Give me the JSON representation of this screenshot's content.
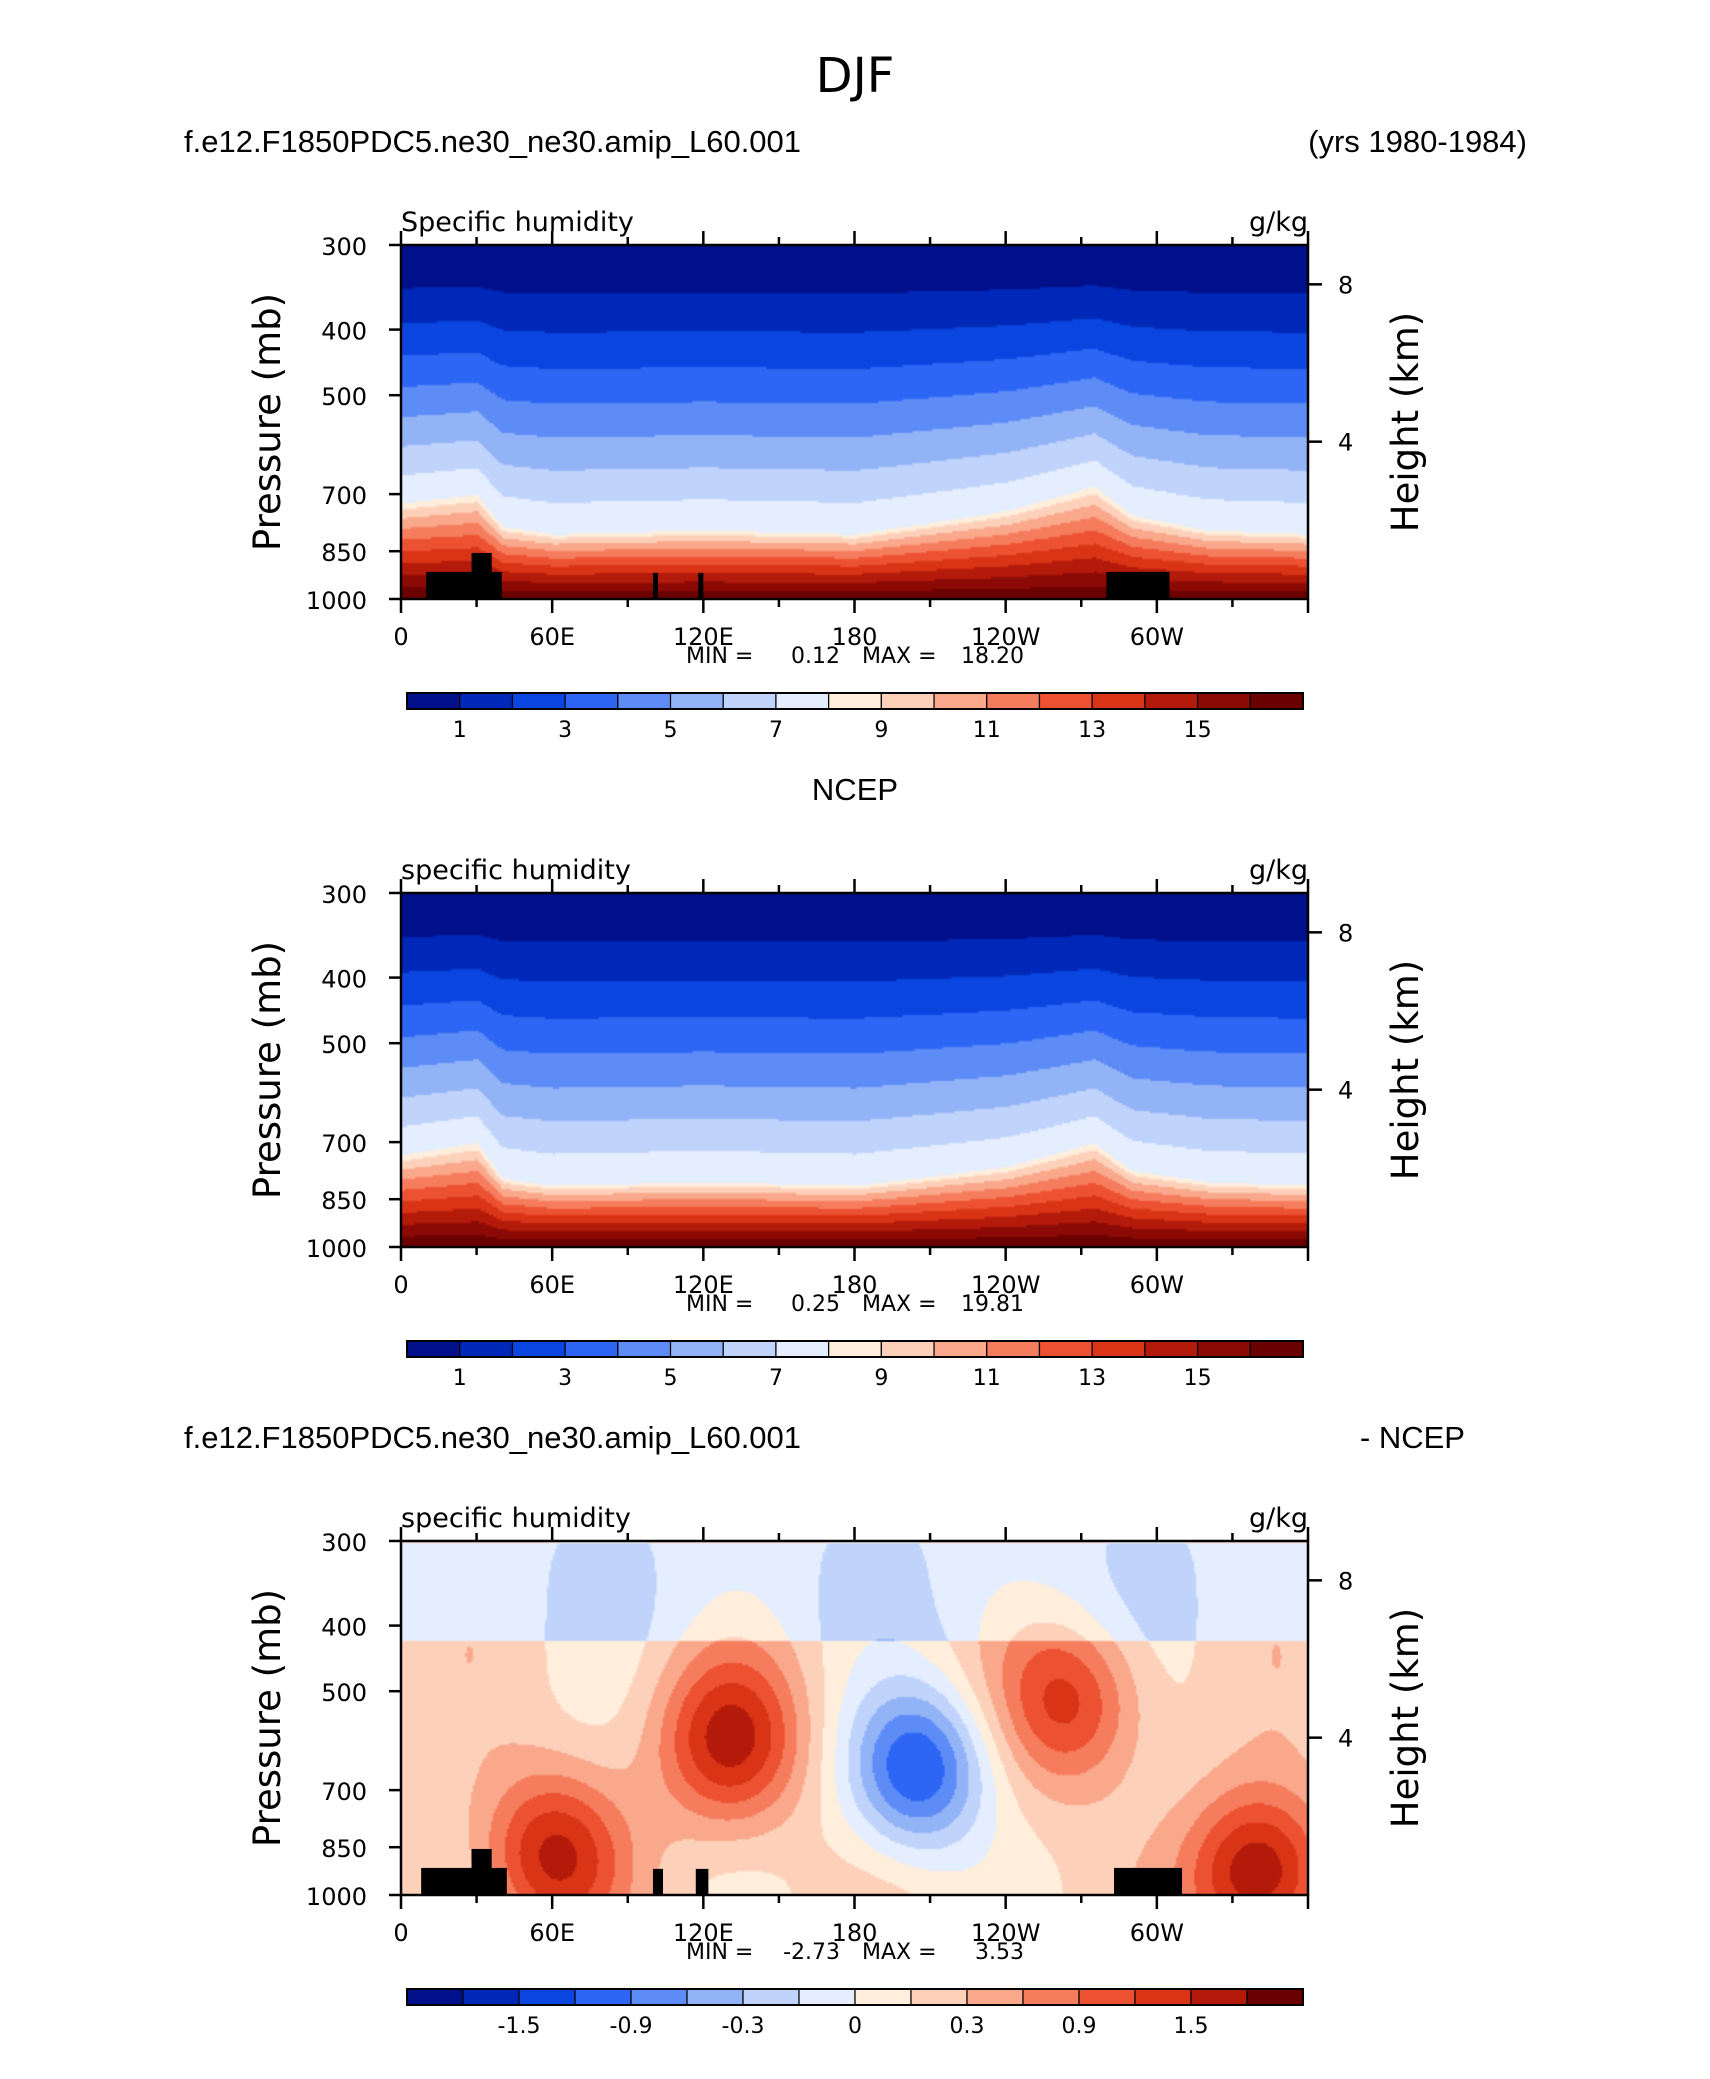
{
  "page_title": "DJF",
  "colors": {
    "seq": [
      "#00108a",
      "#0028b8",
      "#0a45e0",
      "#2d66f5",
      "#5e8cf6",
      "#93b3f7",
      "#c0d4fb",
      "#e4eeff",
      "#ffeedc",
      "#fdd0ba",
      "#f9a88c",
      "#f57d5e",
      "#ec5232",
      "#da3417",
      "#b41a0a",
      "#8c0a05",
      "#6a0000"
    ],
    "diff": [
      "#00108a",
      "#0028b8",
      "#0a45e0",
      "#2d66f5",
      "#5e8cf6",
      "#93b3f7",
      "#c0d4fb",
      "#e4eeff",
      "#ffeedc",
      "#fdd0ba",
      "#f9a88c",
      "#f57d5e",
      "#ec5232",
      "#da3417",
      "#b41a0a",
      "#6a0000"
    ],
    "terrain": "#000000"
  },
  "panels": [
    {
      "header_left": "f.e12.F1850PDC5.ne30_ne30.amip_L60.001",
      "header_right": "(yrs 1980-1984)",
      "header_center": "",
      "left_string": "Specific humidity",
      "right_string": "g/kg",
      "ylabel": "Pressure (mb)",
      "y2label": "Height (km)",
      "min_label": "MIN =",
      "min_value": "0.12",
      "max_label": "MAX =",
      "max_value": "18.20",
      "y_ticks": [
        "300",
        "400",
        "500",
        "700",
        "850",
        "1000"
      ],
      "x_ticks": [
        "0",
        "60E",
        "120E",
        "180",
        "120W",
        "60W"
      ],
      "y2_ticks": [
        "8",
        "4"
      ],
      "colorbar_labels": [
        "1",
        "3",
        "5",
        "7",
        "9",
        "11",
        "13",
        "15"
      ]
    },
    {
      "header_left": "",
      "header_right": "",
      "header_center": "NCEP",
      "left_string": "specific humidity",
      "right_string": "g/kg",
      "ylabel": "Pressure (mb)",
      "y2label": "Height (km)",
      "min_label": "MIN =",
      "min_value": "0.25",
      "max_label": "MAX =",
      "max_value": "19.81",
      "y_ticks": [
        "300",
        "400",
        "500",
        "700",
        "850",
        "1000"
      ],
      "x_ticks": [
        "0",
        "60E",
        "120E",
        "180",
        "120W",
        "60W"
      ],
      "y2_ticks": [
        "8",
        "4"
      ],
      "colorbar_labels": [
        "1",
        "3",
        "5",
        "7",
        "9",
        "11",
        "13",
        "15"
      ]
    },
    {
      "header_left": "f.e12.F1850PDC5.ne30_ne30.amip_L60.001",
      "header_right": "- NCEP",
      "header_center": "",
      "left_string": "specific humidity",
      "right_string": "g/kg",
      "ylabel": "Pressure (mb)",
      "y2label": "Height (km)",
      "min_label": "MIN =",
      "min_value": "-2.73",
      "max_label": "MAX =",
      "max_value": "3.53",
      "y_ticks": [
        "300",
        "400",
        "500",
        "700",
        "850",
        "1000"
      ],
      "x_ticks": [
        "0",
        "60E",
        "120E",
        "180",
        "120W",
        "60W"
      ],
      "y2_ticks": [
        "8",
        "4"
      ],
      "colorbar_labels": [
        "-1.5",
        "-0.9",
        "-0.3",
        "0",
        "0.3",
        "0.9",
        "1.5"
      ]
    }
  ],
  "chart_data": [
    {
      "type": "heatmap",
      "x": [
        0,
        60,
        120,
        180,
        240,
        300
      ],
      "y": [
        300,
        400,
        500,
        700,
        850,
        1000
      ],
      "xlim": [
        0,
        360
      ],
      "ylim": [
        1000,
        300
      ],
      "y_scale": "log",
      "y2lim_km": [
        0,
        9
      ],
      "zmin": 0.12,
      "zmax": 18.2,
      "levels": [
        1,
        2,
        3,
        4,
        5,
        6,
        7,
        8,
        9,
        10,
        11,
        12,
        13,
        14,
        15,
        16
      ],
      "colorbar_ticks": [
        1,
        3,
        5,
        7,
        9,
        11,
        13,
        15
      ],
      "moist_layer_top_mb": [
        [
          0,
          720
        ],
        [
          30,
          700
        ],
        [
          40,
          780
        ],
        [
          60,
          800
        ],
        [
          120,
          790
        ],
        [
          180,
          800
        ],
        [
          240,
          740
        ],
        [
          275,
          680
        ],
        [
          290,
          750
        ],
        [
          320,
          790
        ],
        [
          360,
          800
        ]
      ],
      "terrain_mb": [
        [
          10,
          912
        ],
        [
          28,
          855
        ],
        [
          36,
          912
        ],
        [
          40,
          912
        ],
        [
          100,
          915
        ],
        [
          102,
          915
        ],
        [
          118,
          915
        ],
        [
          120,
          915
        ],
        [
          280,
          912
        ],
        [
          305,
          912
        ]
      ],
      "grid": false,
      "legend": "bottom"
    },
    {
      "type": "heatmap",
      "x": [
        0,
        60,
        120,
        180,
        240,
        300
      ],
      "y": [
        300,
        400,
        500,
        700,
        850,
        1000
      ],
      "xlim": [
        0,
        360
      ],
      "ylim": [
        1000,
        300
      ],
      "y_scale": "log",
      "y2lim_km": [
        0,
        9
      ],
      "zmin": 0.25,
      "zmax": 19.81,
      "levels": [
        1,
        2,
        3,
        4,
        5,
        6,
        7,
        8,
        9,
        10,
        11,
        12,
        13,
        14,
        15,
        16
      ],
      "colorbar_ticks": [
        1,
        3,
        5,
        7,
        9,
        11,
        13,
        15
      ],
      "moist_layer_top_mb": [
        [
          0,
          730
        ],
        [
          30,
          700
        ],
        [
          40,
          790
        ],
        [
          60,
          810
        ],
        [
          120,
          800
        ],
        [
          180,
          810
        ],
        [
          240,
          760
        ],
        [
          275,
          700
        ],
        [
          290,
          770
        ],
        [
          320,
          800
        ],
        [
          360,
          810
        ]
      ],
      "grid": false,
      "legend": "bottom"
    },
    {
      "type": "heatmap",
      "x": [
        0,
        60,
        120,
        180,
        240,
        300
      ],
      "y": [
        300,
        400,
        500,
        700,
        850,
        1000
      ],
      "xlim": [
        0,
        360
      ],
      "ylim": [
        1000,
        300
      ],
      "y_scale": "log",
      "y2lim_km": [
        0,
        9
      ],
      "zmin": -2.73,
      "zmax": 3.53,
      "levels": [
        -2.1,
        -1.8,
        -1.5,
        -1.2,
        -0.9,
        -0.6,
        -0.3,
        0,
        0.3,
        0.6,
        0.9,
        1.2,
        1.5,
        1.8,
        2.1
      ],
      "colorbar_ticks": [
        -1.5,
        -0.9,
        -0.3,
        0,
        0.3,
        0.9,
        1.5
      ],
      "features": [
        {
          "lon": 205,
          "p": 650,
          "value": -1.8
        },
        {
          "lon": 130,
          "p": 590,
          "value": 1.5
        },
        {
          "lon": 265,
          "p": 520,
          "value": 1.2
        },
        {
          "lon": 340,
          "p": 930,
          "value": 1.8
        },
        {
          "lon": 60,
          "p": 870,
          "value": 1.5
        }
      ],
      "terrain_mb": [
        [
          8,
          912
        ],
        [
          28,
          855
        ],
        [
          36,
          912
        ],
        [
          42,
          912
        ],
        [
          100,
          915
        ],
        [
          104,
          915
        ],
        [
          117,
          915
        ],
        [
          122,
          915
        ],
        [
          283,
          912
        ],
        [
          310,
          912
        ]
      ],
      "grid": false,
      "legend": "bottom"
    }
  ]
}
